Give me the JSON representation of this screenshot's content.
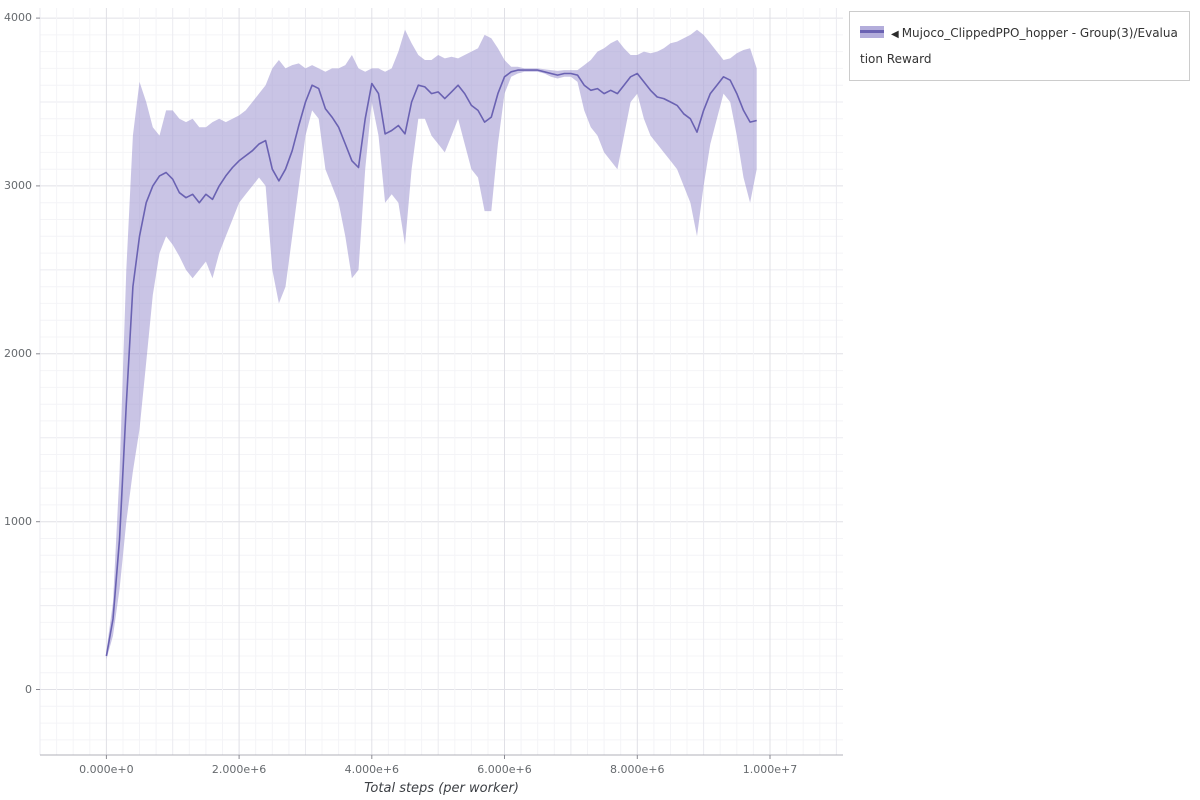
{
  "window": {
    "background": "#ffffff"
  },
  "chart": {
    "legend": {
      "collapse_icon": "◀",
      "label": "Mujoco_ClippedPPO_hopper - Group(3)/Evaluation Reward"
    }
  },
  "chart_data": {
    "type": "line",
    "title": "",
    "xlabel": "Total steps (per worker)",
    "ylabel": "",
    "grid": true,
    "legend_position": "top-right",
    "xlim": [
      -1000000,
      11100000
    ],
    "ylim": [
      -390,
      4060
    ],
    "x_minor_step": 250000,
    "y_minor_step": 100,
    "x_ticks": [
      {
        "value": 0,
        "label": "0.000e+0"
      },
      {
        "value": 2000000,
        "label": "2.000e+6"
      },
      {
        "value": 4000000,
        "label": "4.000e+6"
      },
      {
        "value": 6000000,
        "label": "6.000e+6"
      },
      {
        "value": 8000000,
        "label": "8.000e+6"
      },
      {
        "value": 10000000,
        "label": "1.000e+7"
      }
    ],
    "y_ticks": [
      {
        "value": 0,
        "label": "0"
      },
      {
        "value": 1000,
        "label": "1000"
      },
      {
        "value": 2000,
        "label": "2000"
      },
      {
        "value": 3000,
        "label": "3000"
      },
      {
        "value": 4000,
        "label": "4000"
      }
    ],
    "series": [
      {
        "name": "Mujoco_ClippedPPO_hopper - Group(3)/Evaluation Reward",
        "line_color": "#6a62b2",
        "band_color": "#938acc",
        "band_opacity": 0.5,
        "x": [
          0,
          100000,
          200000,
          300000,
          400000,
          500000,
          600000,
          700000,
          800000,
          900000,
          1000000,
          1100000,
          1200000,
          1300000,
          1400000,
          1500000,
          1600000,
          1700000,
          1800000,
          1900000,
          2000000,
          2100000,
          2200000,
          2300000,
          2400000,
          2500000,
          2600000,
          2700000,
          2800000,
          2900000,
          3000000,
          3100000,
          3200000,
          3300000,
          3400000,
          3500000,
          3600000,
          3700000,
          3800000,
          3900000,
          4000000,
          4100000,
          4200000,
          4300000,
          4400000,
          4500000,
          4600000,
          4700000,
          4800000,
          4900000,
          5000000,
          5100000,
          5200000,
          5300000,
          5400000,
          5500000,
          5600000,
          5700000,
          5800000,
          5900000,
          6000000,
          6100000,
          6200000,
          6300000,
          6400000,
          6500000,
          6600000,
          6700000,
          6800000,
          6900000,
          7000000,
          7100000,
          7200000,
          7300000,
          7400000,
          7500000,
          7600000,
          7700000,
          7800000,
          7900000,
          8000000,
          8100000,
          8200000,
          8300000,
          8400000,
          8500000,
          8600000,
          8700000,
          8800000,
          8900000,
          9000000,
          9100000,
          9200000,
          9300000,
          9400000,
          9500000,
          9600000,
          9700000,
          9800000
        ],
        "mean": [
          200,
          420,
          900,
          1700,
          2400,
          2700,
          2900,
          3000,
          3060,
          3080,
          3040,
          2960,
          2930,
          2950,
          2900,
          2950,
          2920,
          3000,
          3060,
          3110,
          3150,
          3180,
          3210,
          3250,
          3270,
          3100,
          3030,
          3100,
          3210,
          3360,
          3500,
          3600,
          3580,
          3460,
          3410,
          3350,
          3250,
          3150,
          3110,
          3400,
          3610,
          3550,
          3310,
          3330,
          3360,
          3310,
          3500,
          3600,
          3590,
          3550,
          3560,
          3520,
          3560,
          3600,
          3550,
          3480,
          3450,
          3380,
          3410,
          3550,
          3650,
          3680,
          3690,
          3690,
          3690,
          3690,
          3680,
          3670,
          3660,
          3670,
          3670,
          3660,
          3600,
          3570,
          3580,
          3550,
          3570,
          3550,
          3600,
          3650,
          3670,
          3620,
          3570,
          3530,
          3520,
          3500,
          3480,
          3430,
          3400,
          3320,
          3450,
          3550,
          3600,
          3650,
          3630,
          3550,
          3450,
          3380,
          3390
        ],
        "lower": [
          180,
          320,
          600,
          1000,
          1300,
          1550,
          1950,
          2350,
          2600,
          2700,
          2650,
          2580,
          2500,
          2450,
          2500,
          2550,
          2450,
          2600,
          2700,
          2800,
          2900,
          2950,
          3000,
          3050,
          3000,
          2500,
          2300,
          2400,
          2700,
          3000,
          3300,
          3450,
          3400,
          3100,
          3000,
          2900,
          2700,
          2450,
          2500,
          3100,
          3500,
          3300,
          2900,
          2950,
          2900,
          2650,
          3100,
          3400,
          3400,
          3300,
          3250,
          3200,
          3300,
          3400,
          3250,
          3100,
          3050,
          2850,
          2850,
          3250,
          3550,
          3650,
          3670,
          3680,
          3680,
          3680,
          3670,
          3650,
          3640,
          3650,
          3650,
          3620,
          3450,
          3350,
          3300,
          3200,
          3150,
          3100,
          3300,
          3500,
          3550,
          3400,
          3300,
          3250,
          3200,
          3150,
          3100,
          3000,
          2900,
          2700,
          3000,
          3250,
          3400,
          3550,
          3500,
          3300,
          3050,
          2900,
          3100
        ],
        "upper": [
          230,
          520,
          1300,
          2500,
          3300,
          3620,
          3500,
          3350,
          3300,
          3450,
          3450,
          3400,
          3380,
          3400,
          3350,
          3350,
          3380,
          3400,
          3380,
          3400,
          3420,
          3450,
          3500,
          3550,
          3600,
          3700,
          3750,
          3700,
          3720,
          3730,
          3700,
          3720,
          3700,
          3680,
          3700,
          3700,
          3720,
          3780,
          3700,
          3680,
          3700,
          3700,
          3680,
          3700,
          3800,
          3930,
          3850,
          3780,
          3750,
          3750,
          3780,
          3760,
          3770,
          3760,
          3780,
          3800,
          3820,
          3900,
          3880,
          3820,
          3750,
          3710,
          3710,
          3700,
          3700,
          3700,
          3695,
          3690,
          3685,
          3690,
          3690,
          3690,
          3720,
          3750,
          3800,
          3820,
          3850,
          3870,
          3820,
          3780,
          3780,
          3800,
          3790,
          3800,
          3820,
          3850,
          3860,
          3880,
          3900,
          3930,
          3900,
          3850,
          3800,
          3750,
          3760,
          3790,
          3810,
          3820,
          3700
        ]
      }
    ]
  }
}
